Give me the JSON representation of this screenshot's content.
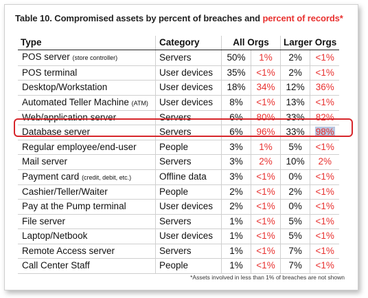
{
  "title": {
    "main": "Table 10. Compromised assets by percent of breaches and ",
    "red": "percent of records",
    "star": "*"
  },
  "headers": {
    "type": "Type",
    "category": "Category",
    "all_orgs": "All Orgs",
    "larger_orgs": "Larger Orgs"
  },
  "rows": [
    {
      "type": "POS server",
      "note": "(store controller)",
      "category": "Servers",
      "all_b": "50%",
      "all_r": "1%",
      "lg_b": "2%",
      "lg_r": "<1%"
    },
    {
      "type": "POS terminal",
      "note": "",
      "category": "User devices",
      "all_b": "35%",
      "all_r": "<1%",
      "lg_b": "2%",
      "lg_r": "<1%"
    },
    {
      "type": "Desktop/Workstation",
      "note": "",
      "category": "User devices",
      "all_b": "18%",
      "all_r": "34%",
      "lg_b": "12%",
      "lg_r": "36%"
    },
    {
      "type": "Automated Teller Machine",
      "note": "(ATM)",
      "category": "User devices",
      "all_b": "8%",
      "all_r": "<1%",
      "lg_b": "13%",
      "lg_r": "<1%"
    },
    {
      "type": "Web/application server",
      "note": "",
      "category": "Servers",
      "all_b": "6%",
      "all_r": "80%",
      "lg_b": "33%",
      "lg_r": "82%"
    },
    {
      "type": "Database server",
      "note": "",
      "category": "Servers",
      "all_b": "6%",
      "all_r": "96%",
      "lg_b": "33%",
      "lg_r": "98%"
    },
    {
      "type": "Regular employee/end-user",
      "note": "",
      "category": "People",
      "all_b": "3%",
      "all_r": "1%",
      "lg_b": "5%",
      "lg_r": "<1%"
    },
    {
      "type": "Mail server",
      "note": "",
      "category": "Servers",
      "all_b": "3%",
      "all_r": "2%",
      "lg_b": "10%",
      "lg_r": "2%"
    },
    {
      "type": "Payment card",
      "note": "(credit, debit, etc.)",
      "category": "Offline data",
      "all_b": "3%",
      "all_r": "<1%",
      "lg_b": "0%",
      "lg_r": "<1%"
    },
    {
      "type": "Cashier/Teller/Waiter",
      "note": "",
      "category": "People",
      "all_b": "2%",
      "all_r": "<1%",
      "lg_b": "2%",
      "lg_r": "<1%"
    },
    {
      "type": "Pay at the Pump terminal",
      "note": "",
      "category": "User devices",
      "all_b": "2%",
      "all_r": "<1%",
      "lg_b": "0%",
      "lg_r": "<1%"
    },
    {
      "type": "File server",
      "note": "",
      "category": "Servers",
      "all_b": "1%",
      "all_r": "<1%",
      "lg_b": "5%",
      "lg_r": "<1%"
    },
    {
      "type": "Laptop/Netbook",
      "note": "",
      "category": "User devices",
      "all_b": "1%",
      "all_r": "<1%",
      "lg_b": "5%",
      "lg_r": "<1%"
    },
    {
      "type": "Remote Access server",
      "note": "",
      "category": "Servers",
      "all_b": "1%",
      "all_r": "<1%",
      "lg_b": "7%",
      "lg_r": "<1%"
    },
    {
      "type": "Call Center Staff",
      "note": "",
      "category": "People",
      "all_b": "1%",
      "all_r": "<1%",
      "lg_b": "7%",
      "lg_r": "<1%"
    }
  ],
  "footnote": "*Assets involved in less than 1% of breaches are not shown",
  "colors": {
    "accent_red": "#e8312f",
    "highlight_border": "#d7262b",
    "cell_highlight": "#b9c6e0"
  }
}
